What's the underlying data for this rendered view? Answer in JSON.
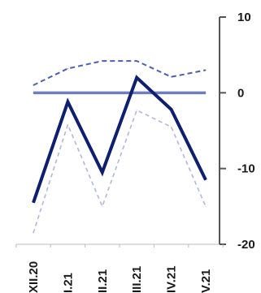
{
  "chart_data": {
    "type": "line",
    "categories": [
      "XII.20",
      "I.21",
      "II.21",
      "III.21",
      "IV.21",
      "V.21"
    ],
    "y_axis": {
      "position": "right",
      "range": [
        -20,
        10
      ],
      "ticks": [
        10,
        0,
        -10,
        -20
      ],
      "tick_labels": [
        "10",
        "0",
        "-10",
        "-20"
      ]
    },
    "grid": false,
    "series": [
      {
        "style": "solid-thick",
        "color": "#0d1f6e",
        "values": [
          -14.5,
          -1.2,
          -10.5,
          2.0,
          -2.2,
          -11.5
        ]
      },
      {
        "style": "dashed-upper",
        "color": "#4f5fa8",
        "values": [
          1.0,
          3.2,
          4.2,
          4.2,
          2.1,
          3.0
        ]
      },
      {
        "style": "dashed-lower",
        "color": "#b3b7d6",
        "values": [
          -18.5,
          -4.2,
          -15.0,
          -2.3,
          -4.5,
          -15.0
        ]
      },
      {
        "style": "solid-flat",
        "color": "#6f7fbb",
        "values": [
          0,
          0,
          0,
          0,
          0,
          0
        ]
      }
    ]
  }
}
